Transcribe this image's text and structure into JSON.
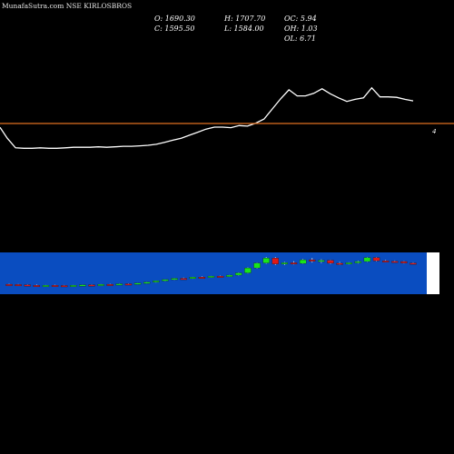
{
  "header": {
    "title": "MunafaSutra.com NSE KIRLOSBROS"
  },
  "ohlc": {
    "open": "O: 1690.30",
    "high": "H: 1707.70",
    "oc": "OC: 5.94",
    "close": "C: 1595.50",
    "low": "L: 1584.00",
    "oh": "OH: 1.03",
    "ol": "OL: 6.71"
  },
  "colors": {
    "background": "#000000",
    "line": "#ffffff",
    "baseline": "#e07020",
    "band": "#0a4dc0",
    "up": "#19e619",
    "down": "#e01818",
    "neutral": "#d0d0d0"
  },
  "chart_data": [
    {
      "type": "line",
      "x": [
        1,
        2,
        3,
        4,
        5,
        6,
        7,
        8,
        9,
        10,
        11,
        12,
        13,
        14,
        15,
        16,
        17,
        18,
        19,
        20,
        21,
        22,
        23,
        24,
        25,
        26,
        27,
        28,
        29,
        30,
        31,
        32,
        33,
        34,
        35,
        36,
        37,
        38,
        39,
        40,
        41,
        42,
        43,
        44,
        45,
        46,
        47,
        48,
        49,
        50
      ],
      "y": [
        610,
        591,
        590,
        590,
        591,
        590,
        590,
        591,
        592,
        592,
        592,
        593,
        592,
        593,
        594,
        594,
        595,
        596,
        598,
        602,
        606,
        610,
        616,
        622,
        628,
        632,
        632,
        631,
        635,
        634,
        640,
        648,
        668,
        688,
        706,
        694,
        694,
        699,
        708,
        698,
        690,
        683,
        687,
        690,
        710,
        692,
        692,
        691,
        687,
        684
      ],
      "xlabel_mark": "4",
      "ylim": [
        560,
        740
      ]
    },
    {
      "type": "candlestick",
      "ylim": [
        540,
        760
      ],
      "candles": [
        {
          "o": 602,
          "h": 604,
          "l": 598,
          "c": 601
        },
        {
          "o": 601,
          "h": 603,
          "l": 597,
          "c": 600
        },
        {
          "o": 600,
          "h": 602,
          "l": 596,
          "c": 599
        },
        {
          "o": 598,
          "h": 601,
          "l": 595,
          "c": 596
        },
        {
          "o": 596,
          "h": 599,
          "l": 593,
          "c": 598
        },
        {
          "o": 598,
          "h": 600,
          "l": 595,
          "c": 597
        },
        {
          "o": 597,
          "h": 599,
          "l": 594,
          "c": 595
        },
        {
          "o": 595,
          "h": 599,
          "l": 594,
          "c": 598
        },
        {
          "o": 598,
          "h": 601,
          "l": 596,
          "c": 600
        },
        {
          "o": 600,
          "h": 602,
          "l": 597,
          "c": 599
        },
        {
          "o": 599,
          "h": 603,
          "l": 597,
          "c": 602
        },
        {
          "o": 602,
          "h": 604,
          "l": 599,
          "c": 601
        },
        {
          "o": 601,
          "h": 605,
          "l": 600,
          "c": 604
        },
        {
          "o": 604,
          "h": 606,
          "l": 601,
          "c": 603
        },
        {
          "o": 603,
          "h": 608,
          "l": 602,
          "c": 607
        },
        {
          "o": 607,
          "h": 612,
          "l": 605,
          "c": 611
        },
        {
          "o": 611,
          "h": 617,
          "l": 609,
          "c": 616
        },
        {
          "o": 616,
          "h": 622,
          "l": 614,
          "c": 621
        },
        {
          "o": 621,
          "h": 627,
          "l": 619,
          "c": 626
        },
        {
          "o": 626,
          "h": 629,
          "l": 623,
          "c": 625
        },
        {
          "o": 625,
          "h": 632,
          "l": 624,
          "c": 631
        },
        {
          "o": 631,
          "h": 634,
          "l": 628,
          "c": 630
        },
        {
          "o": 630,
          "h": 636,
          "l": 629,
          "c": 635
        },
        {
          "o": 635,
          "h": 637,
          "l": 631,
          "c": 633
        },
        {
          "o": 633,
          "h": 640,
          "l": 632,
          "c": 639
        },
        {
          "o": 639,
          "h": 650,
          "l": 637,
          "c": 648
        },
        {
          "o": 648,
          "h": 670,
          "l": 646,
          "c": 668
        },
        {
          "o": 668,
          "h": 690,
          "l": 665,
          "c": 688
        },
        {
          "o": 688,
          "h": 712,
          "l": 685,
          "c": 708
        },
        {
          "o": 708,
          "h": 712,
          "l": 680,
          "c": 684
        },
        {
          "o": 684,
          "h": 692,
          "l": 680,
          "c": 689
        },
        {
          "o": 689,
          "h": 695,
          "l": 682,
          "c": 686
        },
        {
          "o": 686,
          "h": 704,
          "l": 684,
          "c": 701
        },
        {
          "o": 701,
          "h": 708,
          "l": 690,
          "c": 695
        },
        {
          "o": 695,
          "h": 703,
          "l": 688,
          "c": 699
        },
        {
          "o": 699,
          "h": 701,
          "l": 684,
          "c": 687
        },
        {
          "o": 687,
          "h": 692,
          "l": 680,
          "c": 685
        },
        {
          "o": 685,
          "h": 691,
          "l": 682,
          "c": 689
        },
        {
          "o": 689,
          "h": 697,
          "l": 686,
          "c": 694
        },
        {
          "o": 694,
          "h": 712,
          "l": 692,
          "c": 710
        },
        {
          "o": 710,
          "h": 712,
          "l": 694,
          "c": 697
        },
        {
          "o": 697,
          "h": 700,
          "l": 692,
          "c": 695
        },
        {
          "o": 695,
          "h": 698,
          "l": 690,
          "c": 694
        },
        {
          "o": 694,
          "h": 696,
          "l": 686,
          "c": 688
        },
        {
          "o": 688,
          "h": 691,
          "l": 683,
          "c": 685
        }
      ]
    }
  ]
}
